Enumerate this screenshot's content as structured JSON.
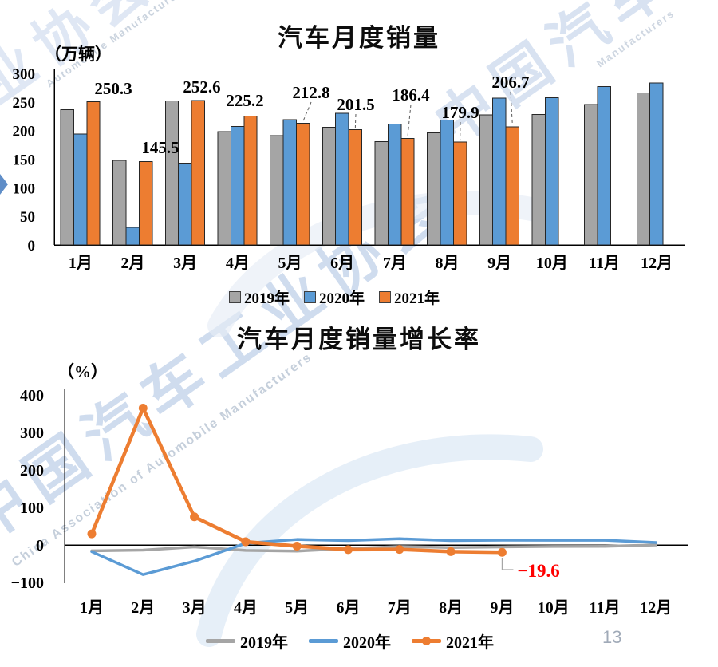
{
  "page": {
    "number": "13"
  },
  "watermark": {
    "cjk_full": "中国汽车工业协会",
    "cjk_top_left": "工业协会",
    "cjk_top_right": "中国汽车工业协会",
    "latin_full": "China Association of Automobile Manufacturers",
    "latin_top_left": "Automobile Manufacturers",
    "latin_top_right": "Manufacturers",
    "color": "#8fadd8",
    "latin_color": "#a7b6c9"
  },
  "colors": {
    "y2019": "#a5a5a5",
    "y2020": "#5b9bd5",
    "y2021": "#ed7d31",
    "axis": "#000000",
    "annotation_red": "#ff0000"
  },
  "chart_data": [
    {
      "type": "bar",
      "title": "汽车月度销量",
      "unit_label": "（万辆）",
      "categories": [
        "1月",
        "2月",
        "3月",
        "4月",
        "5月",
        "6月",
        "7月",
        "8月",
        "9月",
        "10月",
        "11月",
        "12月"
      ],
      "series": [
        {
          "name": "2019年",
          "color": "#a5a5a5",
          "values": [
            236.7,
            148.2,
            252.0,
            198.0,
            191.3,
            205.7,
            180.8,
            195.8,
            227.1,
            228.4,
            245.7,
            265.8
          ]
        },
        {
          "name": "2020年",
          "color": "#5b9bd5",
          "values": [
            194.1,
            31.0,
            143.0,
            207.0,
            219.4,
            230.0,
            211.2,
            218.6,
            256.5,
            257.3,
            277.0,
            283.1
          ]
        },
        {
          "name": "2021年",
          "color": "#ed7d31",
          "values": [
            250.3,
            145.5,
            252.6,
            225.2,
            212.8,
            201.5,
            186.4,
            179.9,
            206.7,
            null,
            null,
            null
          ]
        }
      ],
      "data_labels": [
        "250.3",
        "145.5",
        "252.6",
        "225.2",
        "212.8",
        "201.5",
        "186.4",
        "179.9",
        "206.7"
      ],
      "labeled_series": "2021年",
      "ylim": [
        0,
        300
      ],
      "yticks": [
        0,
        50,
        100,
        150,
        200,
        250,
        300
      ],
      "grid": false,
      "legend_position": "bottom"
    },
    {
      "type": "line",
      "title": "汽车月度销量增长率",
      "unit_label": "（%）",
      "categories": [
        "1月",
        "2月",
        "3月",
        "4月",
        "5月",
        "6月",
        "7月",
        "8月",
        "9月",
        "10月",
        "11月",
        "12月"
      ],
      "series": [
        {
          "name": "2019年",
          "color": "#a5a5a5",
          "marker": false,
          "values": [
            -15.8,
            -13.8,
            -5.2,
            -14.6,
            -16.4,
            -9.6,
            -4.3,
            -6.9,
            -5.2,
            -4.1,
            -3.6,
            -0.1
          ]
        },
        {
          "name": "2020年",
          "color": "#5b9bd5",
          "marker": false,
          "values": [
            -18.0,
            -79.1,
            -43.3,
            4.4,
            14.5,
            11.6,
            16.4,
            11.6,
            12.8,
            12.5,
            12.6,
            6.4
          ]
        },
        {
          "name": "2021年",
          "color": "#ed7d31",
          "marker": true,
          "values": [
            29.5,
            364.8,
            74.9,
            8.6,
            -3.1,
            -12.4,
            -11.9,
            -17.8,
            -19.6,
            null,
            null,
            null
          ]
        }
      ],
      "annotation": {
        "text": "-19.6",
        "color": "#ff0000",
        "series": "2021年",
        "category": "9月"
      },
      "ylim": [
        -100,
        400
      ],
      "yticks": [
        400,
        300,
        200,
        100,
        0,
        -100
      ],
      "grid": false,
      "legend_position": "bottom"
    }
  ]
}
